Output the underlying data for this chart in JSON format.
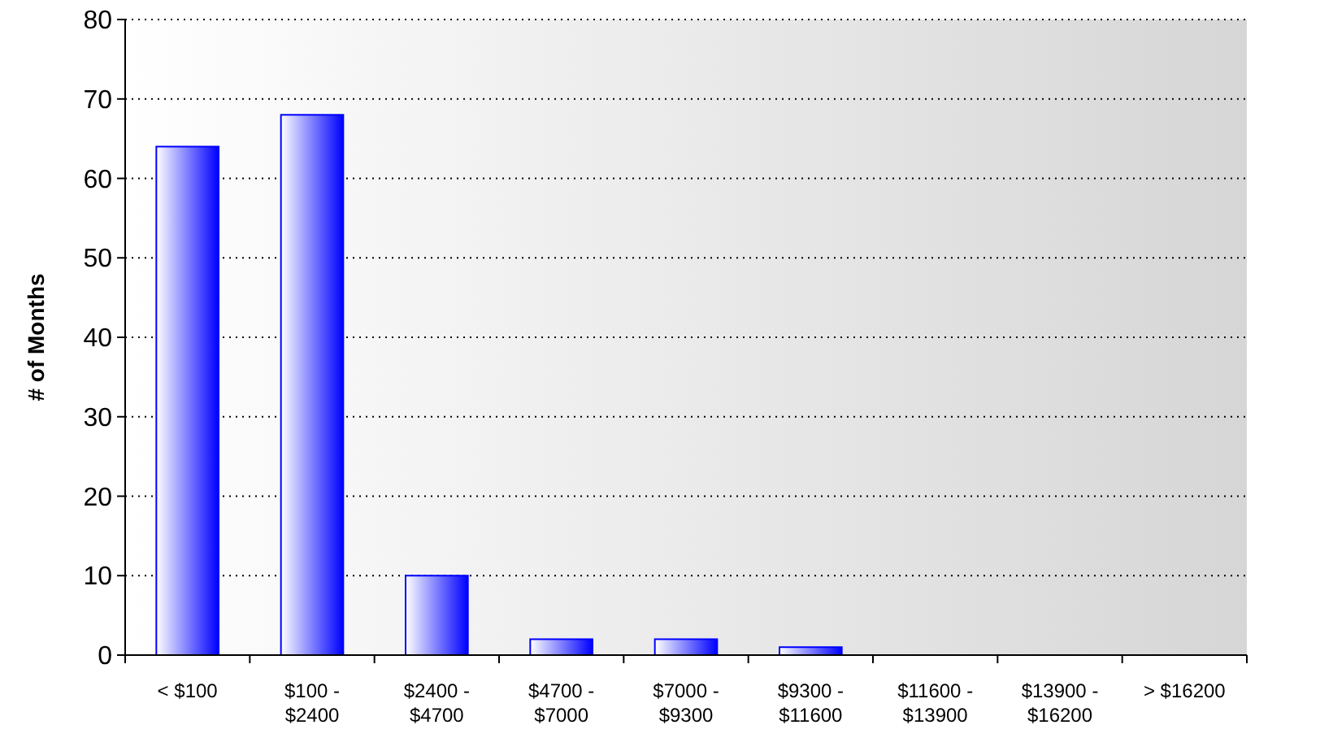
{
  "chart_data": {
    "type": "bar",
    "ylabel": "# of Months",
    "categories": [
      "< $100",
      "$100 - $2400",
      "$2400 - $4700",
      "$4700 - $7000",
      "$7000 - $9300",
      "$9300 - $11600",
      "$11600 - $13900",
      "$13900 - $16200",
      "> $16200"
    ],
    "values": [
      64,
      68,
      10,
      2,
      2,
      1,
      0,
      0,
      0
    ],
    "color": "#0000ff",
    "ylim": [
      0,
      80
    ],
    "yticks": [
      0,
      10,
      20,
      30,
      40,
      50,
      60,
      70,
      80
    ],
    "grid": "y"
  }
}
